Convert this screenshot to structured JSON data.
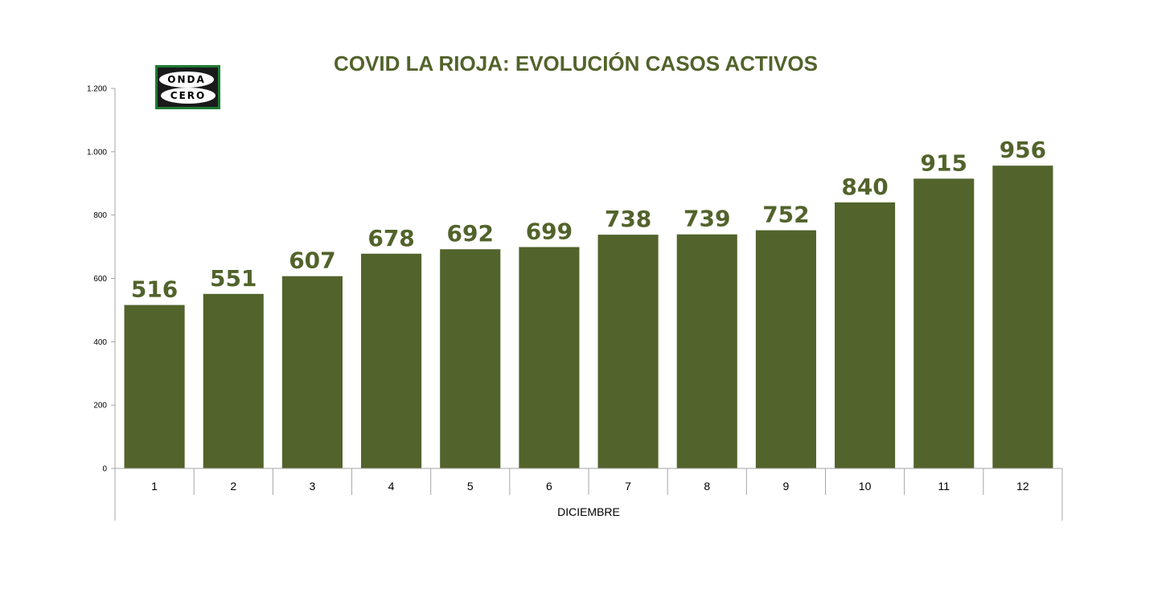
{
  "chart_data": {
    "type": "bar",
    "title": "COVID LA RIOJA: EVOLUCIÓN CASOS ACTIVOS",
    "xlabel": "DICIEMBRE",
    "ylabel": "",
    "categories": [
      "1",
      "2",
      "3",
      "4",
      "5",
      "6",
      "7",
      "8",
      "9",
      "10",
      "11",
      "12"
    ],
    "values": [
      516,
      551,
      607,
      678,
      692,
      699,
      738,
      739,
      752,
      840,
      915,
      956
    ],
    "ylim": [
      0,
      1200
    ],
    "yticks": [
      0,
      200,
      400,
      600,
      800,
      1000,
      1200
    ],
    "ytick_labels": [
      "0",
      "200",
      "400",
      "600",
      "800",
      "1.000",
      "1.200"
    ],
    "data_labels": true,
    "grid": false,
    "legend": "none",
    "colors": {
      "bar": "#52632b",
      "title": "#52632b",
      "data_label": "#52632b",
      "axis": "#a6a6a6"
    }
  },
  "logo": {
    "name": "onda-cero-logo",
    "text_top": "ONDA",
    "text_bottom": "CERO",
    "colors": {
      "frame": "#1e7b34",
      "background": "#1a1a1a",
      "oval": "#ffffff"
    }
  }
}
